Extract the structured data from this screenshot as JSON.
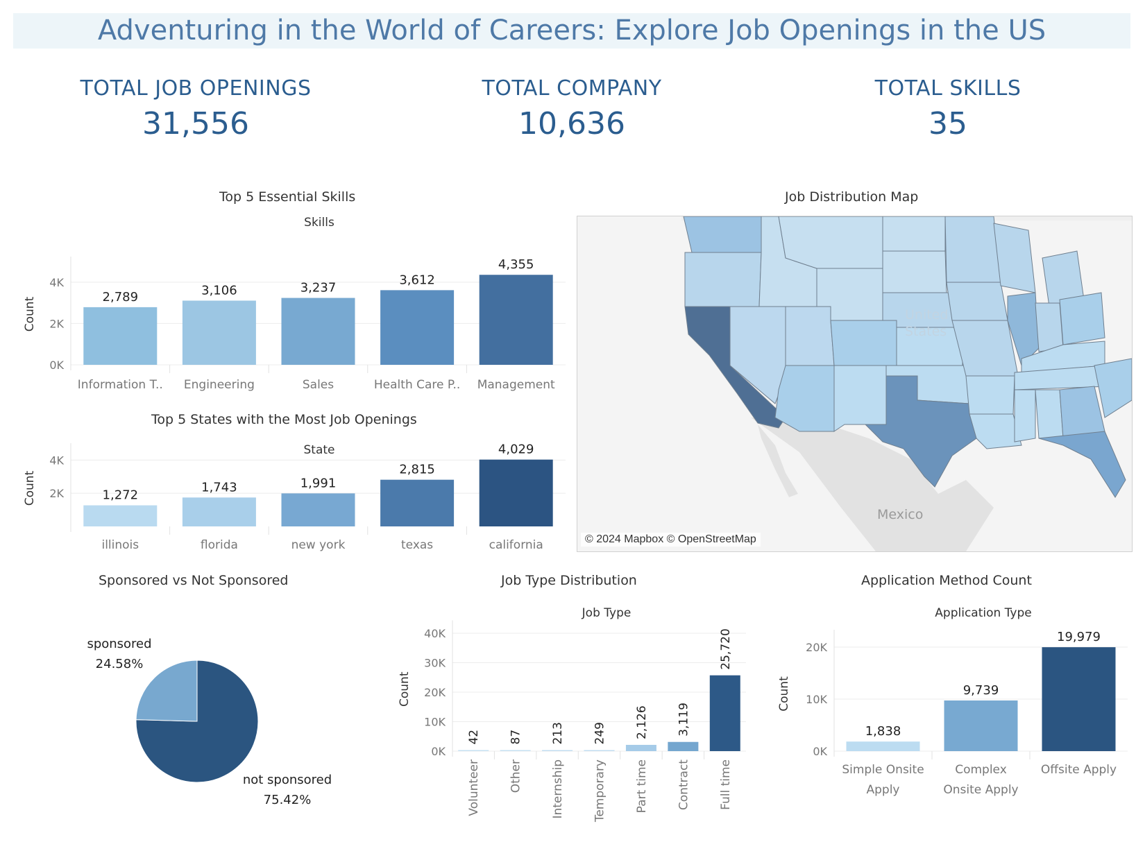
{
  "dashboard": {
    "title": "Adventuring in the World of Careers: Explore Job Openings in the US"
  },
  "kpis": [
    {
      "label": "TOTAL JOB OPENINGS",
      "value": "31,556"
    },
    {
      "label": "TOTAL COMPANY",
      "value": "10,636"
    },
    {
      "label": "TOTAL SKILLS",
      "value": "35"
    }
  ],
  "map": {
    "title": "Job Distribution Map",
    "country_label": "United\nStates",
    "mexico_label": "Mexico",
    "credit": "© 2024 Mapbox © OpenStreetMap",
    "colors": {
      "low": "#c6dff0",
      "mid": "#9cc3e3",
      "high": "#6b93bb",
      "highest": "#4f6f94",
      "land": "#e5e5e5",
      "water": "#ffffff"
    }
  },
  "chart_data": [
    {
      "id": "skills",
      "type": "bar",
      "title": "Top 5 Essential Skills",
      "subtitle": "Skills",
      "ylabel": "Count",
      "categories": [
        "Information T..",
        "Engineering",
        "Sales",
        "Health Care P..",
        "Management"
      ],
      "values": [
        2789,
        3106,
        3237,
        3612,
        4355
      ],
      "value_labels": [
        "2,789",
        "3,106",
        "3,237",
        "3,612",
        "4,355"
      ],
      "colors": [
        "#8fbfdf",
        "#9cc6e3",
        "#78a9d1",
        "#5b8ebf",
        "#436f9f"
      ],
      "yticks": [
        0,
        2000,
        4000
      ],
      "ytick_labels": [
        "0K",
        "2K",
        "4K"
      ],
      "ylim": [
        0,
        4900
      ]
    },
    {
      "id": "states",
      "type": "bar",
      "title": "Top 5 States with the Most Job Openings",
      "subtitle": "State",
      "ylabel": "Count",
      "categories": [
        "illinois",
        "florida",
        "new york",
        "texas",
        "california"
      ],
      "values": [
        1272,
        1743,
        1991,
        2815,
        4029
      ],
      "value_labels": [
        "1,272",
        "1,743",
        "1,991",
        "2,815",
        "4,029"
      ],
      "colors": [
        "#b9daf0",
        "#a9cfea",
        "#78a8d2",
        "#4b7aab",
        "#2c5482"
      ],
      "yticks": [
        2000,
        4000
      ],
      "ytick_labels": [
        "2K",
        "4K"
      ],
      "ylim": [
        0,
        4600
      ]
    },
    {
      "id": "sponsor",
      "type": "pie",
      "title": "Sponsored vs Not Sponsored",
      "slices": [
        {
          "label": "sponsored",
          "pct_label": "24.58%",
          "value": 24.58,
          "color": "#78a8cf"
        },
        {
          "label": "not sponsored",
          "pct_label": "75.42%",
          "value": 75.42,
          "color": "#2b5580"
        }
      ]
    },
    {
      "id": "jobtype",
      "type": "bar",
      "title": "Job Type Distribution",
      "subtitle": "Job Type",
      "ylabel": "Count",
      "categories": [
        "Volunteer",
        "Other",
        "Internship",
        "Temporary",
        "Part time",
        "Contract",
        "Full time"
      ],
      "values": [
        42,
        87,
        213,
        249,
        2126,
        3119,
        25720
      ],
      "value_labels": [
        "42",
        "87",
        "213",
        "249",
        "2,126",
        "3,119",
        "25,720"
      ],
      "colors": [
        "#c6e0f2",
        "#c6e0f2",
        "#c2ddf0",
        "#c2ddf0",
        "#a5cbe8",
        "#74a6cf",
        "#2d5987"
      ],
      "yticks": [
        0,
        10000,
        20000,
        30000,
        40000
      ],
      "ytick_labels": [
        "0K",
        "10K",
        "20K",
        "30K",
        "40K"
      ],
      "ylim": [
        0,
        42000
      ]
    },
    {
      "id": "apply",
      "type": "bar",
      "title": "Application Method Count",
      "subtitle": "Application Type",
      "ylabel": "Count",
      "categories": [
        "Simple Onsite\nApply",
        "Complex\nOnsite Apply",
        "Offsite Apply"
      ],
      "values": [
        1838,
        9739,
        19979
      ],
      "value_labels": [
        "1,838",
        "9,739",
        "19,979"
      ],
      "colors": [
        "#bcdcf1",
        "#78a9d1",
        "#2b5581"
      ],
      "yticks": [
        0,
        10000,
        20000
      ],
      "ytick_labels": [
        "0K",
        "10K",
        "20K"
      ],
      "ylim": [
        0,
        22000
      ]
    }
  ]
}
